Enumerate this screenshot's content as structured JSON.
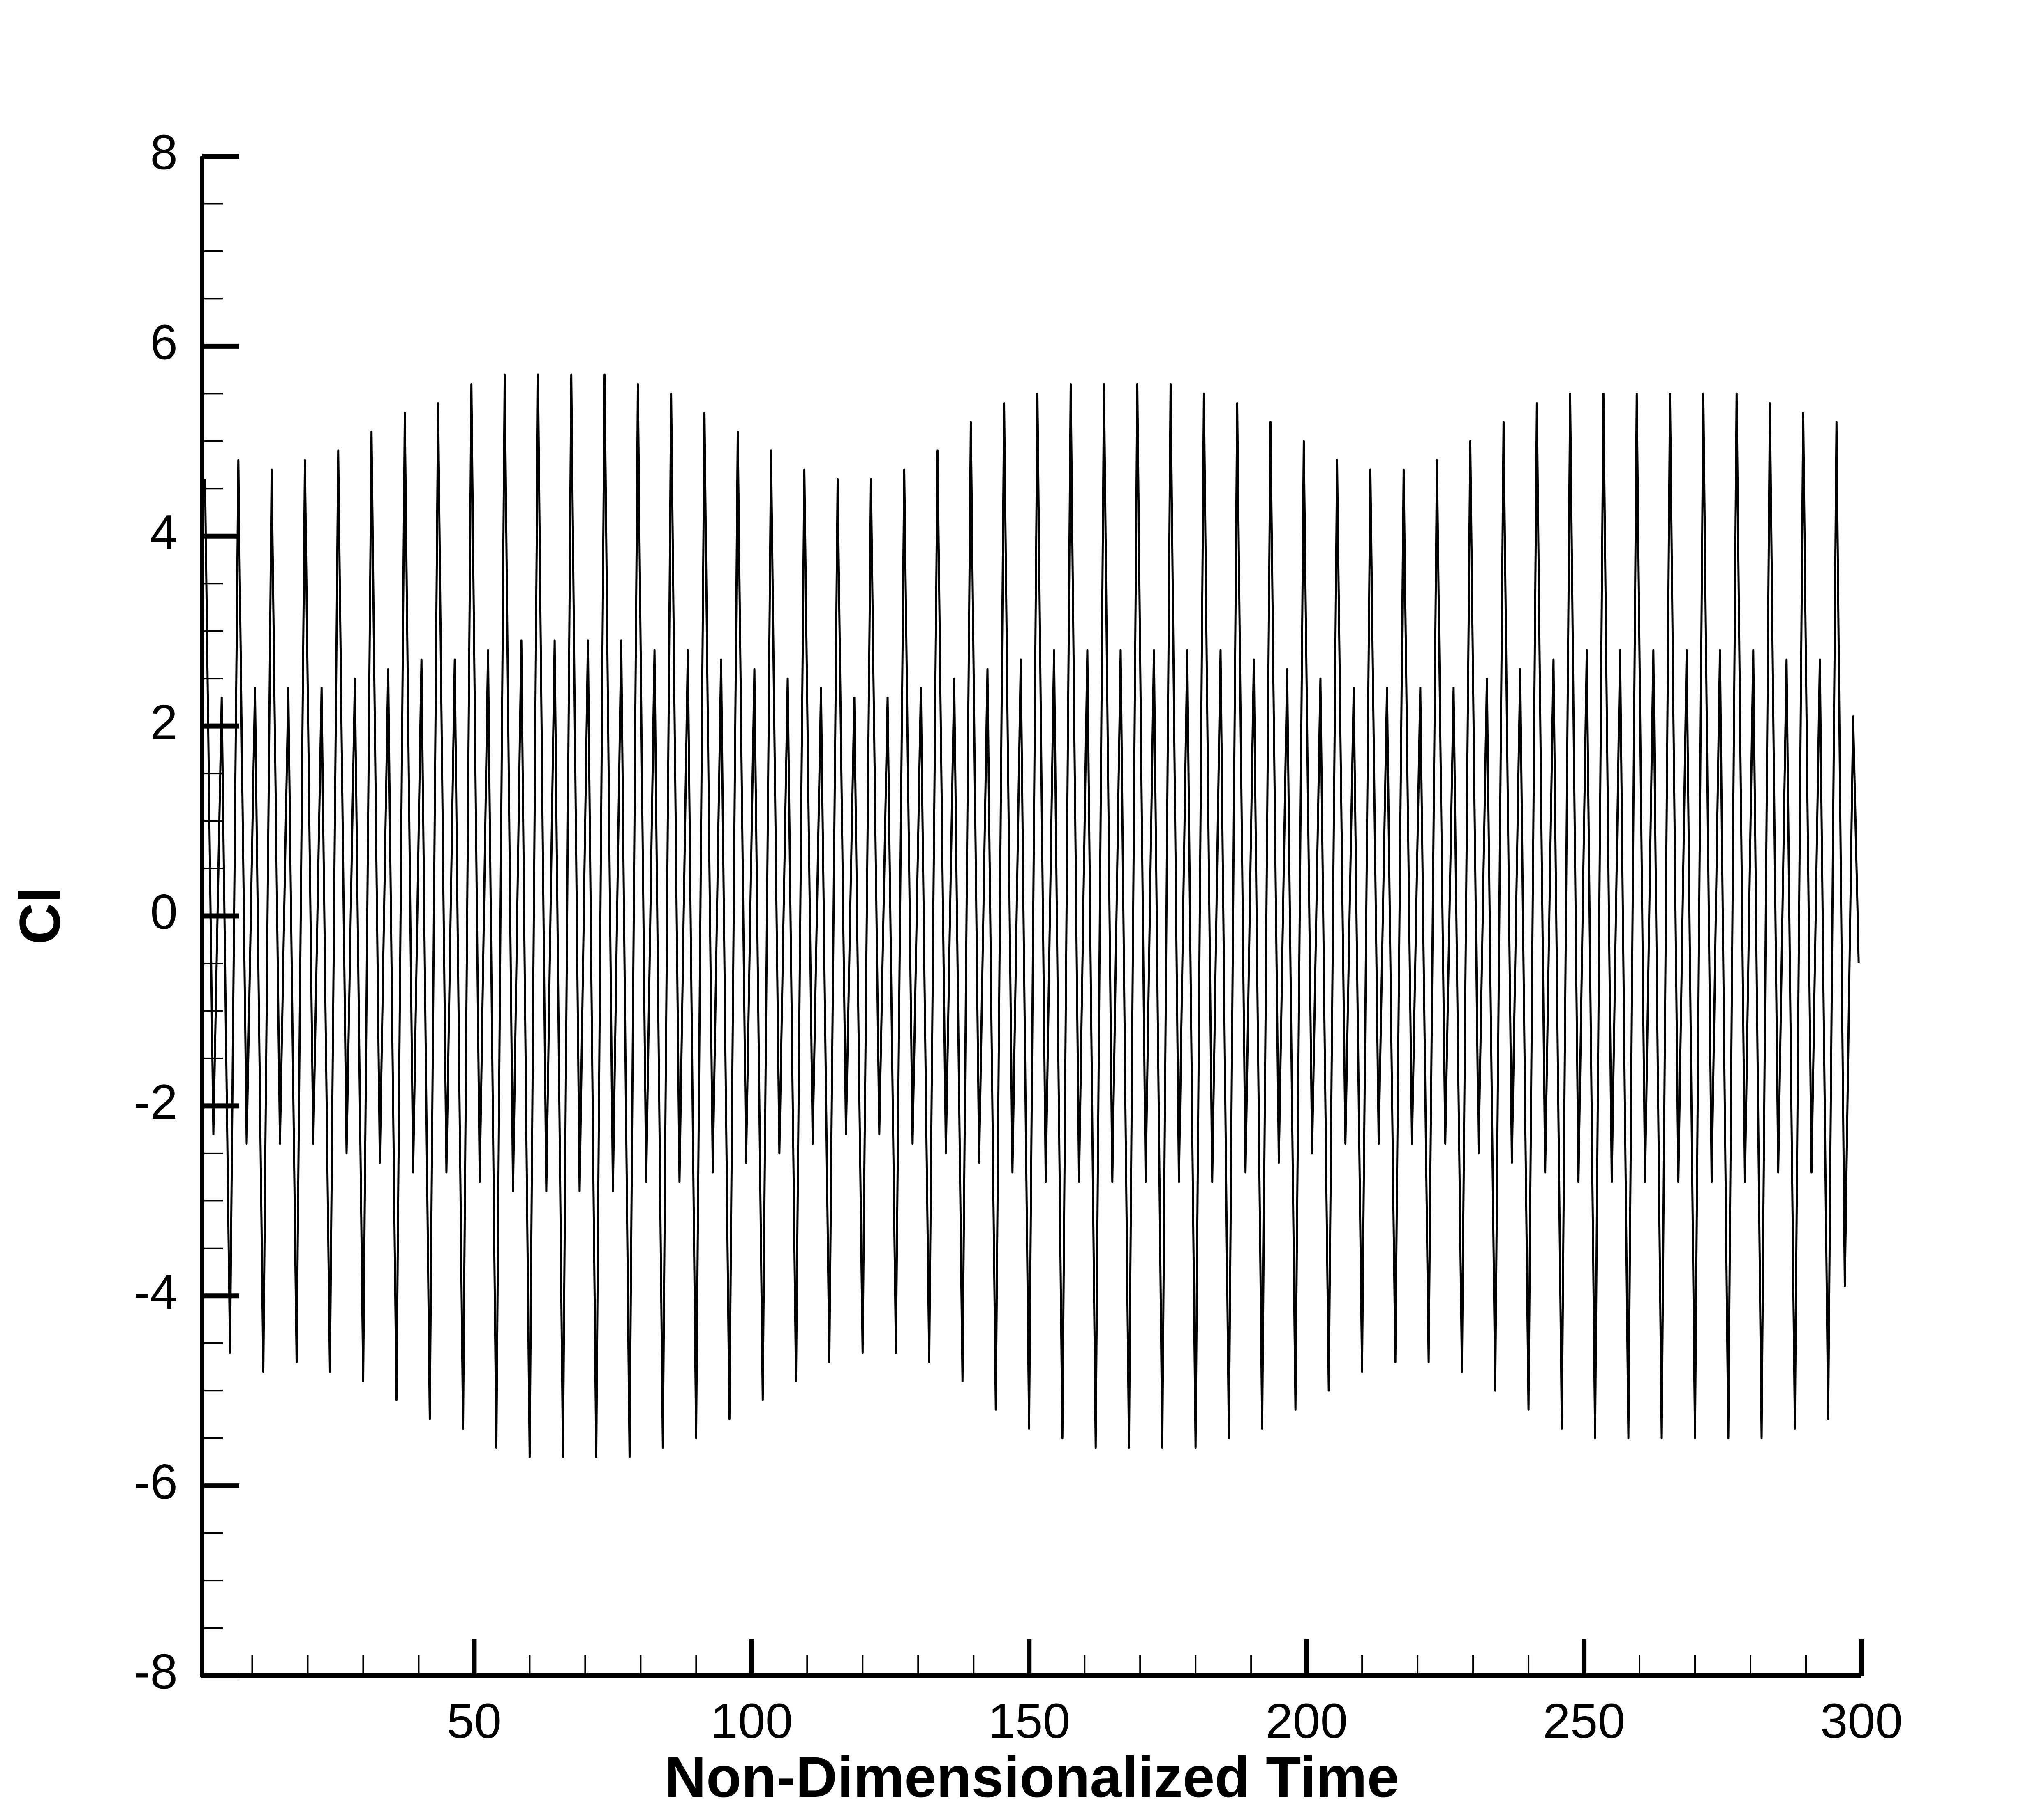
{
  "chart_data": {
    "type": "line",
    "xlabel": "Non-Dimensionalized Time",
    "ylabel": "Cl",
    "xlim": [
      1,
      300
    ],
    "ylim": [
      -8,
      8
    ],
    "xticks": [
      50,
      100,
      150,
      200,
      250,
      300
    ],
    "yticks": [
      -8,
      -6,
      -4,
      -2,
      0,
      2,
      4,
      6,
      8
    ],
    "xminorticks": [
      10,
      20,
      30,
      40,
      60,
      70,
      80,
      90,
      110,
      120,
      130,
      140,
      160,
      170,
      180,
      190,
      210,
      220,
      230,
      240,
      260,
      270,
      280,
      290
    ],
    "yminorticks": [
      -7.5,
      -7,
      -6.5,
      -5.5,
      -5,
      -4.5,
      -3.5,
      -3,
      -2.5,
      -1.5,
      -1,
      -0.5,
      0.5,
      1,
      1.5,
      2.5,
      3,
      3.5,
      4.5,
      5,
      5.5,
      6.5,
      7,
      7.5
    ],
    "color": "#000000",
    "x": [
      1.5,
      3,
      4.5,
      6,
      7.5,
      9,
      10.5,
      12,
      13.5,
      15,
      16.5,
      18,
      19.5,
      21,
      22.5,
      24,
      25.5,
      27,
      28.5,
      30,
      31.5,
      33,
      34.5,
      36,
      37.5,
      39,
      40.5,
      42,
      43.5,
      45,
      46.5,
      48,
      49.5,
      51,
      52.5,
      54,
      55.5,
      57,
      58.5,
      60,
      61.5,
      63,
      64.5,
      66,
      67.5,
      69,
      70.5,
      72,
      73.5,
      75,
      76.5,
      78,
      79.5,
      81,
      82.5,
      84,
      85.5,
      87,
      88.5,
      90,
      91.5,
      93,
      94.5,
      96,
      97.5,
      99,
      100.5,
      102,
      103.5,
      105,
      106.5,
      108,
      109.5,
      111,
      112.5,
      114,
      115.5,
      117,
      118.5,
      120,
      121.5,
      123,
      124.5,
      126,
      127.5,
      129,
      130.5,
      132,
      133.5,
      135,
      136.5,
      138,
      139.5,
      141,
      142.5,
      144,
      145.5,
      147,
      148.5,
      150,
      151.5,
      153,
      154.5,
      156,
      157.5,
      159,
      160.5,
      162,
      163.5,
      165,
      166.5,
      168,
      169.5,
      171,
      172.5,
      174,
      175.5,
      177,
      178.5,
      180,
      181.5,
      183,
      184.5,
      186,
      187.5,
      189,
      190.5,
      192,
      193.5,
      195,
      196.5,
      198,
      199.5,
      201,
      202.5,
      204,
      205.5,
      207,
      208.5,
      210,
      211.5,
      213,
      214.5,
      216,
      217.5,
      219,
      220.5,
      222,
      223.5,
      225,
      226.5,
      228,
      229.5,
      231,
      232.5,
      234,
      235.5,
      237,
      238.5,
      240,
      241.5,
      243,
      244.5,
      246,
      247.5,
      249,
      250.5,
      252,
      253.5,
      255,
      256.5,
      258,
      259.5,
      261,
      262.5,
      264,
      265.5,
      267,
      268.5,
      270,
      271.5,
      273,
      274.5,
      276,
      277.5,
      279,
      280.5,
      282,
      283.5,
      285,
      286.5,
      288,
      289.5,
      291,
      292.5,
      294,
      295.5,
      297,
      298.5,
      299.5
    ],
    "values": [
      4.6,
      -2.3,
      2.3,
      -4.6,
      4.8,
      -2.4,
      2.4,
      -4.8,
      4.7,
      -2.4,
      2.4,
      -4.7,
      4.8,
      -2.4,
      2.4,
      -4.8,
      4.9,
      -2.5,
      2.5,
      -4.9,
      5.1,
      -2.6,
      2.6,
      -5.1,
      5.3,
      -2.7,
      2.7,
      -5.3,
      5.4,
      -2.7,
      2.7,
      -5.4,
      5.6,
      -2.8,
      2.8,
      -5.6,
      5.7,
      -2.9,
      2.9,
      -5.7,
      5.7,
      -2.9,
      2.9,
      -5.7,
      5.7,
      -2.9,
      2.9,
      -5.7,
      5.7,
      -2.9,
      2.9,
      -5.7,
      5.6,
      -2.8,
      2.8,
      -5.6,
      5.5,
      -2.8,
      2.8,
      -5.5,
      5.3,
      -2.7,
      2.7,
      -5.3,
      5.1,
      -2.6,
      2.6,
      -5.1,
      4.9,
      -2.5,
      2.5,
      -4.9,
      4.7,
      -2.4,
      2.4,
      -4.7,
      4.6,
      -2.3,
      2.3,
      -4.6,
      4.6,
      -2.3,
      2.3,
      -4.6,
      4.7,
      -2.4,
      2.4,
      -4.7,
      4.9,
      -2.5,
      2.5,
      -4.9,
      5.2,
      -2.6,
      2.6,
      -5.2,
      5.4,
      -2.7,
      2.7,
      -5.4,
      5.5,
      -2.8,
      2.8,
      -5.5,
      5.6,
      -2.8,
      2.8,
      -5.6,
      5.6,
      -2.8,
      2.8,
      -5.6,
      5.6,
      -2.8,
      2.8,
      -5.6,
      5.6,
      -2.8,
      2.8,
      -5.6,
      5.5,
      -2.8,
      2.8,
      -5.5,
      5.4,
      -2.7,
      2.7,
      -5.4,
      5.2,
      -2.6,
      2.6,
      -5.2,
      5.0,
      -2.5,
      2.5,
      -5.0,
      4.8,
      -2.4,
      2.4,
      -4.8,
      4.7,
      -2.4,
      2.4,
      -4.7,
      4.7,
      -2.4,
      2.4,
      -4.7,
      4.8,
      -2.4,
      2.4,
      -4.8,
      5.0,
      -2.5,
      2.5,
      -5.0,
      5.2,
      -2.6,
      2.6,
      -5.2,
      5.4,
      -2.7,
      2.7,
      -5.4,
      5.5,
      -2.8,
      2.8,
      -5.5,
      5.5,
      -2.8,
      2.8,
      -5.5,
      5.5,
      -2.8,
      2.8,
      -5.5,
      5.5,
      -2.8,
      2.8,
      -5.5,
      5.5,
      -2.8,
      2.8,
      -5.5,
      5.5,
      -2.8,
      2.8,
      -5.5,
      5.4,
      -2.7,
      2.7,
      -5.4,
      5.3,
      -2.7,
      2.7,
      -5.3,
      5.2,
      -3.9,
      2.1,
      -0.5
    ]
  }
}
